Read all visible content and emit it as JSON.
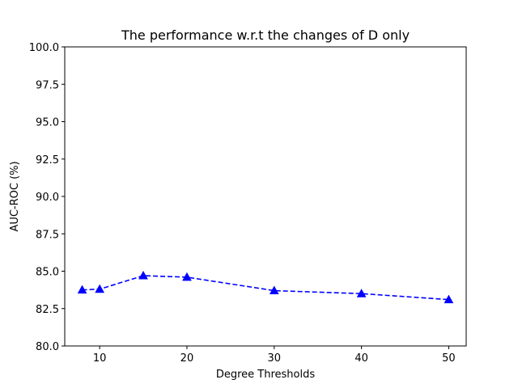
{
  "chart_data": {
    "type": "line",
    "title": "The performance w.r.t the changes of D only",
    "xlabel": "Degree Thresholds",
    "ylabel": "AUC-ROC (%)",
    "xlim": [
      6,
      52
    ],
    "ylim": [
      80.0,
      100.0
    ],
    "xticks": [
      10,
      20,
      30,
      40,
      50
    ],
    "yticks": [
      "80.0",
      "82.5",
      "85.0",
      "87.5",
      "90.0",
      "92.5",
      "95.0",
      "97.5",
      "100.0"
    ],
    "grid": false,
    "series": [
      {
        "x": [
          8,
          10,
          15,
          20,
          30,
          40,
          50
        ],
        "y": [
          83.75,
          83.8,
          84.7,
          84.6,
          83.7,
          83.5,
          83.1
        ],
        "color": "#0000ff",
        "line_style": "dashed",
        "marker": "triangle-up"
      }
    ]
  }
}
